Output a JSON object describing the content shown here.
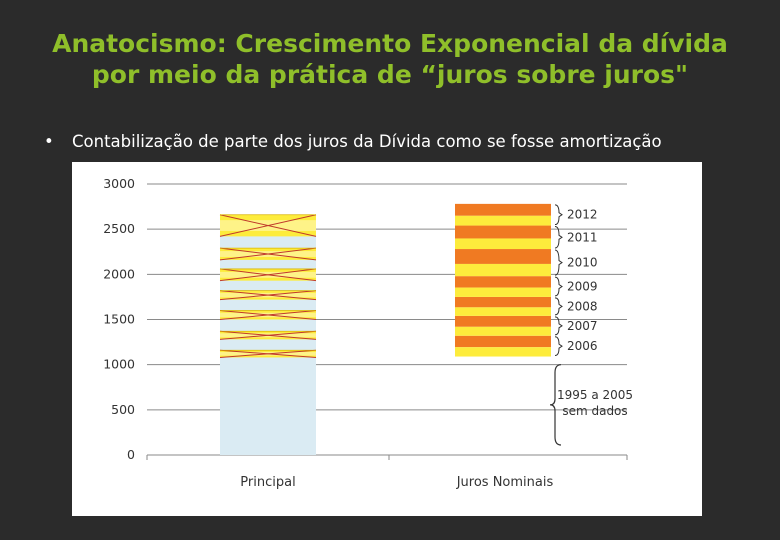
{
  "slide": {
    "title_line1": "Anatocismo: Crescimento Exponencial da dívida",
    "title_line2": "por meio da prática de “juros sobre juros\"",
    "bullet_symbol": "•",
    "bullet_text": "Contabilização de parte dos juros da Dívida como se fosse amortização"
  },
  "colors": {
    "title": "#8fbf2a",
    "background": "#2b2b2b",
    "principal_base": "#daebf3",
    "band_yellow": "#fdec3c",
    "band_light_yellow": "#fdf6a8",
    "band_orange": "#f07a22",
    "cross_line": "#c0392b",
    "grid": "#8a8a8a"
  },
  "chart_data": {
    "type": "bar",
    "categories": [
      "Principal",
      "Juros Nominais"
    ],
    "ylim": [
      0,
      3000
    ],
    "yticks": [
      "0",
      "500",
      "1000",
      "1500",
      "2000",
      "2500",
      "3000"
    ],
    "principal": {
      "base_value": 1080,
      "bands": [
        {
          "from": 1080,
          "to": 1160
        },
        {
          "from": 1280,
          "to": 1370
        },
        {
          "from": 1500,
          "to": 1600
        },
        {
          "from": 1720,
          "to": 1820
        },
        {
          "from": 1930,
          "to": 2060
        },
        {
          "from": 2160,
          "to": 2290
        },
        {
          "from": 2420,
          "to": 2660
        }
      ]
    },
    "juros": {
      "top_value": 2780,
      "years": [
        {
          "label": "2006",
          "from": 1090,
          "to": 1320
        },
        {
          "label": "2007",
          "from": 1320,
          "to": 1540
        },
        {
          "label": "2008",
          "from": 1540,
          "to": 1750
        },
        {
          "label": "2009",
          "from": 1750,
          "to": 1980
        },
        {
          "label": "2010",
          "from": 1980,
          "to": 2280
        },
        {
          "label": "2011",
          "from": 2280,
          "to": 2540
        },
        {
          "label": "2012",
          "from": 2540,
          "to": 2780
        }
      ]
    },
    "note_line1": "1995 a 2005",
    "note_line2": "sem dados",
    "note_range": [
      0,
      1000
    ]
  }
}
